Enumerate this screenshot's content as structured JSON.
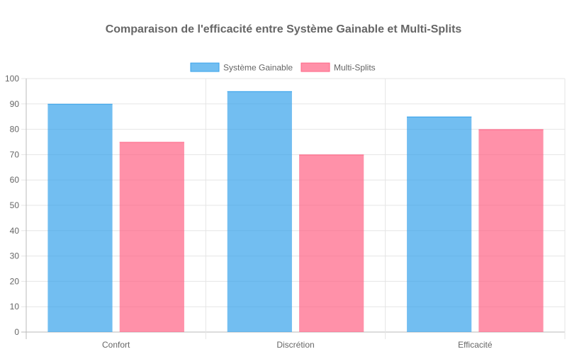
{
  "chart_data": {
    "type": "bar",
    "title": "Comparaison de l'efficacité entre Système Gainable et Multi-Splits",
    "categories": [
      "Confort",
      "Discrétion",
      "Efficacité"
    ],
    "series": [
      {
        "name": "Système Gainable",
        "values": [
          90,
          95,
          85
        ],
        "color": "#36a2eb",
        "fill": "rgba(54,162,235,0.7)"
      },
      {
        "name": "Multi-Splits",
        "values": [
          75,
          70,
          80
        ],
        "color": "#ff6384",
        "fill": "rgba(255,99,132,0.7)"
      }
    ],
    "ylim": [
      0,
      100
    ],
    "yticks": [
      0,
      10,
      20,
      30,
      40,
      50,
      60,
      70,
      80,
      90,
      100
    ],
    "grid": true,
    "legend_position": "top"
  }
}
